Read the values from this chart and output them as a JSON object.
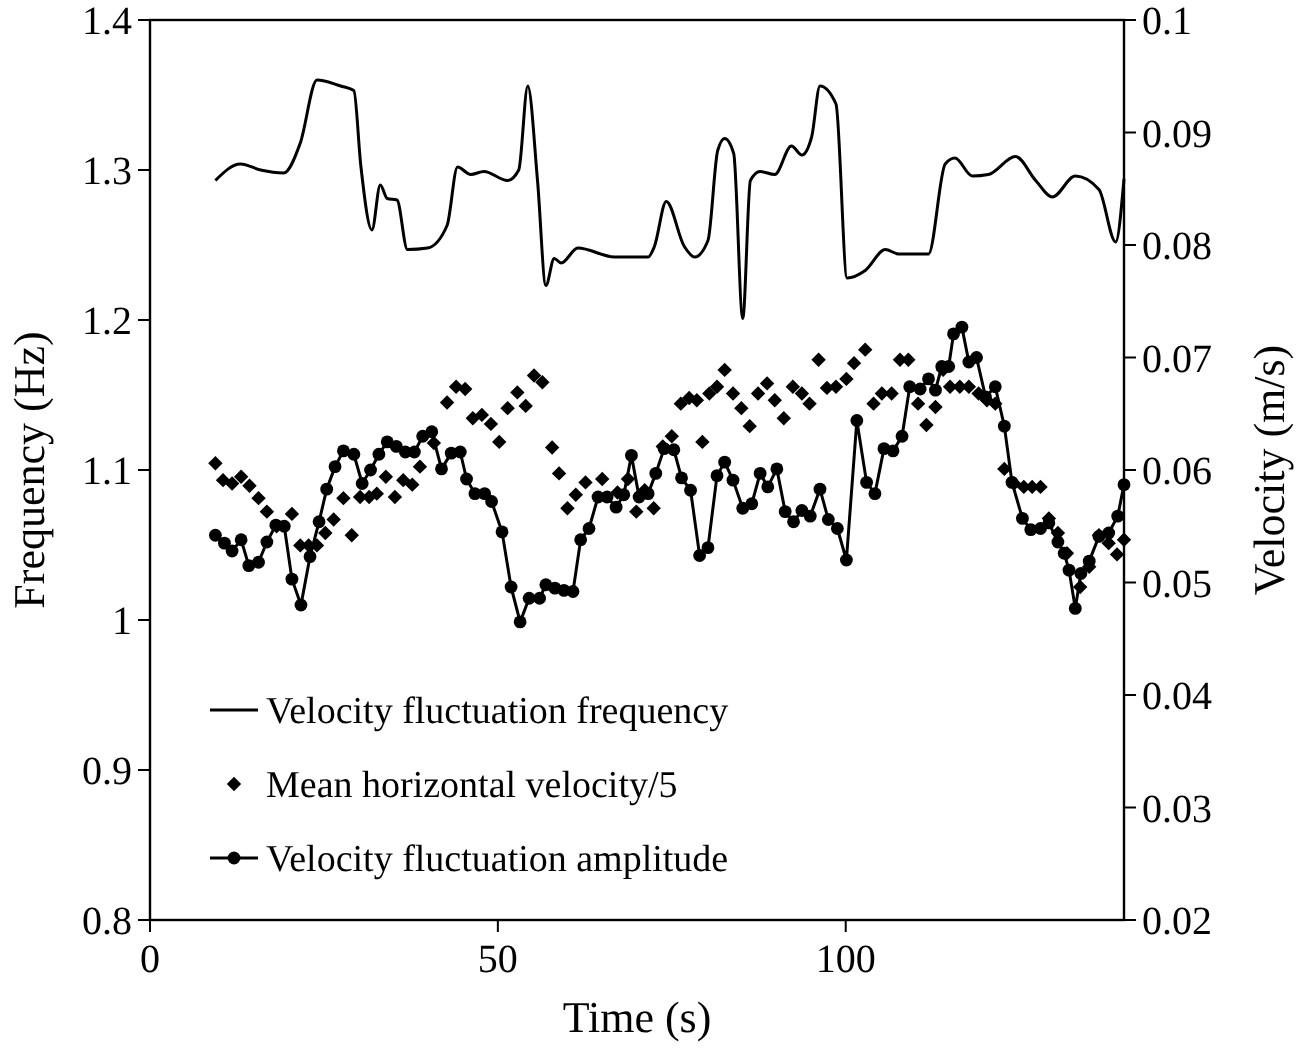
{
  "chart_data": {
    "type": "line",
    "xlabel": "Time (s)",
    "ylabel": "Frequency (Hz)",
    "y2label": "Velocity (m/s)",
    "xlim": [
      0,
      140
    ],
    "xticks": [
      0,
      50,
      100
    ],
    "ylim": [
      0.8,
      1.4
    ],
    "yticks": [
      0.8,
      0.9,
      1,
      1.1,
      1.2,
      1.3,
      1.4
    ],
    "y2lim": [
      0.02,
      0.1
    ],
    "y2ticks": [
      0.02,
      0.03,
      0.04,
      0.05,
      0.06,
      0.07,
      0.08,
      0.09,
      0.1
    ],
    "grid": false,
    "legend": "bottom left",
    "line_style": "solid",
    "series": [
      {
        "name": "Velocity fluctuation frequency",
        "axis": "y",
        "marker": "none",
        "color": "#000000",
        "x": [
          9.4,
          13,
          15.9,
          19.2,
          21.6,
          24,
          27.4,
          29.3,
          30.3,
          31.9,
          33.1,
          34.1,
          35.5,
          37,
          39.9,
          42.7,
          44.2,
          46.1,
          48,
          51.4,
          53,
          54.3,
          55.7,
          56.9,
          58.1,
          59.1,
          61.5,
          66.8,
          71.6,
          72.5,
          74.2,
          76.8,
          78.3,
          80.2,
          81.6,
          82.6,
          83.9,
          85.2,
          86.3,
          87.7,
          89.8,
          92.2,
          93.7,
          95.1,
          96.3,
          98.6,
          100.2,
          102.8,
          105.7,
          107.6,
          111.9,
          114.3,
          115.7,
          118.2,
          120.5,
          124.4,
          127.3,
          129.7,
          133,
          136.4,
          138.8,
          140
        ],
        "values": [
          1.293,
          1.304,
          1.3,
          1.298,
          1.318,
          1.36,
          1.356,
          1.353,
          1.303,
          1.26,
          1.29,
          1.281,
          1.28,
          1.247,
          1.248,
          1.263,
          1.302,
          1.297,
          1.299,
          1.293,
          1.3,
          1.356,
          1.293,
          1.223,
          1.241,
          1.238,
          1.248,
          1.242,
          1.242,
          1.249,
          1.279,
          1.249,
          1.242,
          1.253,
          1.313,
          1.321,
          1.311,
          1.201,
          1.293,
          1.299,
          1.297,
          1.316,
          1.31,
          1.322,
          1.356,
          1.344,
          1.228,
          1.233,
          1.247,
          1.244,
          1.244,
          1.304,
          1.308,
          1.296,
          1.297,
          1.309,
          1.293,
          1.282,
          1.296,
          1.287,
          1.252,
          1.294
        ]
      },
      {
        "name": "Mean horizontal velocity/5",
        "type": "scatter",
        "axis": "y2",
        "marker": "diamond",
        "color": "#000000",
        "x": [
          9.4,
          10.5,
          11.8,
          13.1,
          14.3,
          15.6,
          16.8,
          18.2,
          20.4,
          21.6,
          22.8,
          24,
          25.2,
          26.4,
          27.8,
          29,
          30.2,
          31.5,
          32.6,
          33.9,
          35.2,
          36.4,
          37.7,
          38.8,
          40.8,
          42.7,
          44,
          45.3,
          46.4,
          47.7,
          49,
          50.2,
          51.4,
          52.8,
          54,
          55.2,
          56.4,
          57.8,
          58.8,
          60,
          61.2,
          62.6,
          65,
          67.2,
          68.7,
          69.9,
          71.1,
          72.4,
          73.7,
          75,
          76.3,
          77.5,
          78.6,
          79.4,
          80.4,
          81.5,
          82.6,
          83.8,
          85,
          86.2,
          87.4,
          88.7,
          89.8,
          91.1,
          92.4,
          93.7,
          94.8,
          96.1,
          97.3,
          98.6,
          100.1,
          101.2,
          102.8,
          104,
          105.2,
          106.6,
          107.8,
          109,
          110.4,
          111.6,
          112.9,
          114,
          115,
          116.4,
          117.7,
          119.1,
          120.3,
          121.5,
          122.8,
          124.2,
          125.6,
          126.8,
          128,
          129.2,
          130.5,
          131.8,
          133.7,
          135,
          136.4,
          137.8,
          139,
          140
        ],
        "values": [
          0.0606,
          0.0591,
          0.0588,
          0.0594,
          0.0586,
          0.0575,
          0.0563,
          0.055,
          0.0561,
          0.0533,
          0.0533,
          0.0533,
          0.0544,
          0.0556,
          0.0575,
          0.0542,
          0.0576,
          0.0576,
          0.0579,
          0.0594,
          0.0576,
          0.0591,
          0.0587,
          0.0603,
          0.0624,
          0.066,
          0.0674,
          0.0672,
          0.0646,
          0.0649,
          0.0641,
          0.0625,
          0.0655,
          0.0669,
          0.0657,
          0.0684,
          0.0678,
          0.062,
          0.0597,
          0.0566,
          0.0578,
          0.0589,
          0.0592,
          0.058,
          0.0592,
          0.0563,
          0.0582,
          0.0566,
          0.0621,
          0.063,
          0.0659,
          0.0664,
          0.0662,
          0.0625,
          0.0668,
          0.0674,
          0.0689,
          0.0668,
          0.0655,
          0.0639,
          0.0668,
          0.0677,
          0.0662,
          0.0646,
          0.0674,
          0.0668,
          0.0659,
          0.0698,
          0.0673,
          0.0674,
          0.0681,
          0.0695,
          0.0707,
          0.0659,
          0.0668,
          0.0668,
          0.0698,
          0.0698,
          0.0659,
          0.064,
          0.0656,
          0.0689,
          0.0674,
          0.0674,
          0.0674,
          0.0668,
          0.0662,
          0.0659,
          0.0601,
          0.0588,
          0.0585,
          0.0585,
          0.0585,
          0.0557,
          0.0544,
          0.0526,
          0.0496,
          0.0514,
          0.0542,
          0.0535,
          0.0525,
          0.0538
        ]
      },
      {
        "name": "Velocity fluctuation amplitude",
        "axis": "y2",
        "marker": "circle",
        "color": "#000000",
        "x": [
          9.4,
          10.7,
          11.8,
          13.1,
          14.2,
          15.6,
          16.8,
          18.1,
          19.3,
          20.4,
          21.7,
          23,
          24.3,
          25.4,
          26.6,
          27.8,
          29.3,
          30.5,
          31.7,
          32.9,
          34.1,
          35.4,
          36.7,
          38,
          39.2,
          40.5,
          41.9,
          43.3,
          44.6,
          45.5,
          46.7,
          48.1,
          49.1,
          50.6,
          51.9,
          53.2,
          54.5,
          56,
          56.9,
          58.2,
          59.5,
          60.8,
          61.9,
          63.1,
          64.4,
          65.7,
          67,
          68.1,
          69.2,
          70.3,
          71.6,
          72.7,
          73.9,
          75.3,
          76.4,
          77.7,
          79,
          80.2,
          81.5,
          82.6,
          83.8,
          85.2,
          86.5,
          87.7,
          88.8,
          90.1,
          91.3,
          92.5,
          93.7,
          94.9,
          96.3,
          97.5,
          98.8,
          100.1,
          101.6,
          103,
          104.2,
          105.5,
          106.8,
          108.1,
          109.2,
          110.7,
          111.9,
          112.9,
          113.8,
          114.8,
          115.5,
          116.7,
          117.7,
          118.8,
          120.1,
          121.5,
          122.8,
          123.9,
          125.4,
          126.6,
          128,
          129.2,
          130.5,
          131.4,
          132.1,
          133,
          133.8,
          135,
          136.4,
          137.8,
          139.1,
          140
        ],
        "values": [
          0.0542,
          0.0535,
          0.0528,
          0.0538,
          0.0515,
          0.0518,
          0.0536,
          0.0551,
          0.055,
          0.0503,
          0.048,
          0.0523,
          0.0554,
          0.0583,
          0.0603,
          0.0617,
          0.0614,
          0.0588,
          0.06,
          0.0614,
          0.0625,
          0.0621,
          0.0616,
          0.0616,
          0.063,
          0.0634,
          0.0601,
          0.0615,
          0.0616,
          0.0592,
          0.0579,
          0.0579,
          0.0572,
          0.0545,
          0.0496,
          0.0465,
          0.0486,
          0.0486,
          0.0498,
          0.0495,
          0.0493,
          0.0492,
          0.0538,
          0.0548,
          0.0576,
          0.0576,
          0.0567,
          0.0578,
          0.0613,
          0.0576,
          0.0579,
          0.0597,
          0.0619,
          0.0618,
          0.0593,
          0.0582,
          0.0524,
          0.0531,
          0.0595,
          0.0607,
          0.0591,
          0.0566,
          0.057,
          0.0597,
          0.0585,
          0.0601,
          0.0563,
          0.0554,
          0.0564,
          0.0559,
          0.0583,
          0.0556,
          0.0548,
          0.052,
          0.0644,
          0.0589,
          0.0579,
          0.0619,
          0.0617,
          0.063,
          0.0674,
          0.0672,
          0.0681,
          0.0671,
          0.0692,
          0.0692,
          0.0721,
          0.0727,
          0.0696,
          0.07,
          0.0665,
          0.0674,
          0.0639,
          0.0589,
          0.0557,
          0.0547,
          0.0548,
          0.0553,
          0.0536,
          0.0526,
          0.0511,
          0.0477,
          0.0508,
          0.0519,
          0.0541,
          0.0544,
          0.0559,
          0.0587
        ]
      }
    ]
  }
}
